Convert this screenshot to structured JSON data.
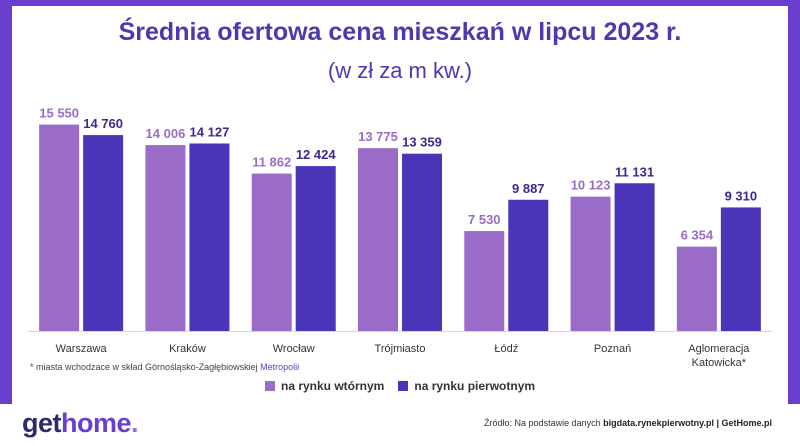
{
  "header": {
    "title": "Średnia ofertowa cena mieszkań w lipcu 2023 r.",
    "subtitle": "(w zł za m kw.)"
  },
  "footnote": {
    "text": "* miasta wchodzace w skład Górnośląsko-Zagłębiowskiej ",
    "accent": "Metropolii"
  },
  "source": {
    "prefix": "Źródło: Na podstawie danych ",
    "bold": "bigdata.rynekpierwotny.pl | GetHome.pl"
  },
  "logo": {
    "get": "get",
    "home": "home",
    "dot": "."
  },
  "colors": {
    "secondary": "#9a6cc8",
    "primary": "#4a34b8",
    "label_secondary": "#9a6cc8",
    "label_primary": "#3a2a8c",
    "frame": "#6a3fd0"
  },
  "chart_data": {
    "type": "bar",
    "title": "Średnia ofertowa cena mieszkań w lipcu 2023 r.",
    "subtitle": "(w zł za m kw.)",
    "categories": [
      "Warszawa",
      "Kraków",
      "Wrocław",
      "Trójmiasto",
      "Łódź",
      "Poznań",
      "Aglomeracja Katowicka*"
    ],
    "series": [
      {
        "name": "na rynku wtórnym",
        "values": [
          15550,
          14006,
          11862,
          13775,
          7530,
          10123,
          6354
        ],
        "labels": [
          "15 550",
          "14 006",
          "11 862",
          "13 775",
          "7 530",
          "10 123",
          "6 354"
        ]
      },
      {
        "name": "na rynku pierwotnym",
        "values": [
          14760,
          14127,
          12424,
          13359,
          9887,
          11131,
          9310
        ],
        "labels": [
          "14 760",
          "14 127",
          "12 424",
          "13 359",
          "9 887",
          "11 131",
          "9 310"
        ]
      }
    ],
    "ylim": [
      0,
      16500
    ],
    "grid": false,
    "legend": "bottom-center"
  }
}
